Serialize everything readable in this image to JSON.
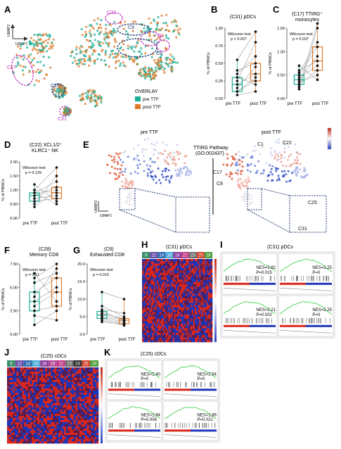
{
  "panel_labels": {
    "A": "A",
    "B": "B",
    "C": "C",
    "D": "D",
    "E": "E",
    "F": "F",
    "G": "G",
    "H": "H",
    "I": "I",
    "J": "J",
    "K": "K"
  },
  "umap": {
    "axis_y": "UMAP2",
    "axis_x": "UMAP1",
    "cluster_labels": {
      "c22": "C22",
      "c9": "C9",
      "c6": "C6",
      "c8": "C8",
      "c17": "C17",
      "c25": "C25",
      "c31": "C31"
    },
    "overlay_title": "OVERLAY",
    "legend": [
      {
        "label": "pre TTF",
        "color": "#1cae96"
      },
      {
        "label": "post TTF",
        "color": "#e07b2a"
      }
    ]
  },
  "colors": {
    "pre": "#1cae96",
    "post": "#e07b2a",
    "magenta": "#c23bc2",
    "navy": "#1f3a6e"
  },
  "panelB": {
    "title": "(C31) pDCs",
    "ylabel": "% of PBMCs",
    "test": "Wilcoxon test",
    "p": "p = 0.027"
  },
  "panelC": {
    "title_l1": "(C17) TTIRG⁺",
    "title_l2": "monocytes",
    "ylabel": "% of PBMCs",
    "test": "Wilcoxon test",
    "p": "p = 0.037"
  },
  "panelD": {
    "title_l1": "(C22) XCL1/2⁺",
    "title_l2": "KLRC1⁺ NK",
    "ylabel": "% of PBMCs",
    "test": "Wilcoxon test",
    "p": "p = 0.129"
  },
  "panelF": {
    "title_l1": "(C28)",
    "title_l2": "Memory CD8",
    "ylabel": "% of PBMCs",
    "test": "Wilcoxon test",
    "p": "p = 0.11"
  },
  "panelG": {
    "title_l1": "(C6)",
    "title_l2": "Exhausted CD8",
    "ylabel": "% of PBMCs",
    "test": "Wilcoxon test",
    "p": "p = 0.016"
  },
  "box_x": {
    "pre": "pre TTF",
    "post": "post TTF"
  },
  "panelE": {
    "pre": "pre TTF",
    "post": "post TTF",
    "pathway_l1": "TTIRG Pathway",
    "pathway_l2": "(GO:002437)",
    "labels": {
      "c1": "C1",
      "c22": "C22",
      "c17": "C17",
      "c8": "C8",
      "c25": "C25",
      "c31": "C31"
    },
    "axis_y": "UMAP2",
    "axis_x": "UMAP1"
  },
  "panelH": {
    "title": "(C31) pDCs",
    "clusters": [
      {
        "n": "9",
        "c": "#3b8f6a"
      },
      {
        "n": "12",
        "c": "#6a4fa8"
      },
      {
        "n": "14",
        "c": "#2e6db0"
      },
      {
        "n": "16",
        "c": "#4da9d8"
      },
      {
        "n": "18",
        "c": "#8a3fa0"
      },
      {
        "n": "22",
        "c": "#c03a8a"
      },
      {
        "n": "23",
        "c": "#6e6e6e"
      },
      {
        "n": "25",
        "c": "#d0452e"
      },
      {
        "n": "28",
        "c": "#4aa03a"
      }
    ]
  },
  "panelI": {
    "title": "(C31) pDCs",
    "stats": [
      {
        "nes": "NES=1.82",
        "p": "P=0.015"
      },
      {
        "nes": "NES=2.25",
        "p": "P=0"
      },
      {
        "nes": "NES=2.21",
        "p": "P=0.002"
      },
      {
        "nes": "NES=2.25",
        "p": "P=0"
      }
    ]
  },
  "panelJ": {
    "title": "(C25) cDCs",
    "clusters": [
      {
        "n": "9",
        "c": "#3b8f6a"
      },
      {
        "n": "12",
        "c": "#6a4fa8"
      },
      {
        "n": "14",
        "c": "#2e6db0"
      },
      {
        "n": "16",
        "c": "#4da9d8"
      },
      {
        "n": "18",
        "c": "#8a3fa0"
      },
      {
        "n": "19",
        "c": "#b24a9a"
      },
      {
        "n": "22",
        "c": "#c03a8a"
      },
      {
        "n": "23",
        "c": "#6e6e6e"
      },
      {
        "n": "24",
        "c": "#333333"
      },
      {
        "n": "25",
        "c": "#d0452e"
      },
      {
        "n": "28",
        "c": "#4aa03a"
      }
    ]
  },
  "panelK": {
    "title": "(C25) cDCs",
    "stats": [
      {
        "nes": "NES=2.40",
        "p": "P=0"
      },
      {
        "nes": "NES=2.54",
        "p": "P=0"
      },
      {
        "nes": "NES=1.94",
        "p": "P=0.008"
      },
      {
        "nes": "NES=1.89",
        "p": "P=0.021"
      }
    ]
  }
}
